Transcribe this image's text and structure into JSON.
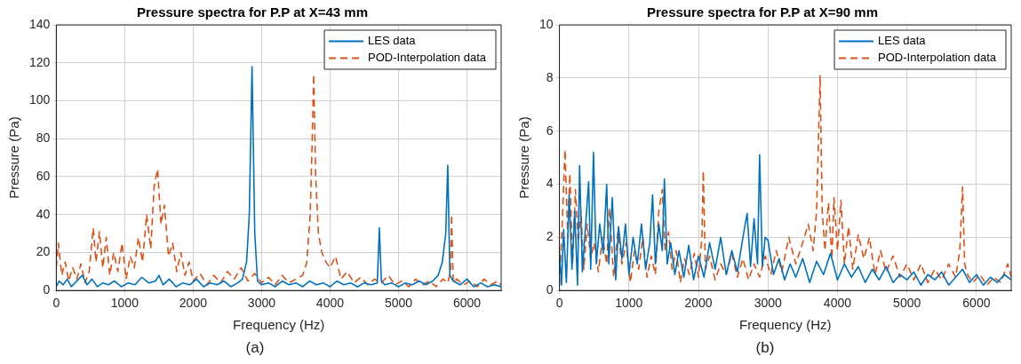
{
  "chart_data": [
    {
      "type": "line",
      "title": "Pressure spectra for P.P at X=43 mm",
      "xlabel": "Frequency (Hz)",
      "ylabel": "Pressure (Pa)",
      "annotations": [
        "(a)"
      ],
      "xlim": [
        0,
        6500
      ],
      "ylim": [
        0,
        140
      ],
      "xticks": [
        0,
        1000,
        2000,
        3000,
        4000,
        5000,
        6000
      ],
      "yticks": [
        0,
        20,
        40,
        60,
        80,
        100,
        120,
        140
      ],
      "grid": true,
      "legend": "top right",
      "series": [
        {
          "name": "LES data",
          "color": "#0072bd",
          "line_style": "solid",
          "x": [
            0,
            40,
            100,
            160,
            220,
            300,
            380,
            450,
            520,
            600,
            680,
            760,
            850,
            950,
            1050,
            1150,
            1250,
            1350,
            1450,
            1500,
            1560,
            1650,
            1750,
            1850,
            1950,
            2050,
            2150,
            2250,
            2350,
            2450,
            2550,
            2650,
            2720,
            2780,
            2820,
            2860,
            2900,
            2940,
            3000,
            3100,
            3200,
            3300,
            3400,
            3500,
            3600,
            3700,
            3800,
            3900,
            4000,
            4100,
            4200,
            4300,
            4400,
            4500,
            4600,
            4690,
            4720,
            4750,
            4800,
            4900,
            5000,
            5100,
            5200,
            5300,
            5400,
            5500,
            5580,
            5640,
            5690,
            5720,
            5750,
            5800,
            5900,
            6000,
            6100,
            6200,
            6300,
            6400,
            6500
          ],
          "values": [
            2,
            5,
            3,
            6,
            2,
            5,
            8,
            3,
            6,
            2,
            4,
            3,
            5,
            2,
            4,
            3,
            7,
            4,
            5,
            8,
            3,
            6,
            2,
            4,
            3,
            6,
            2,
            4,
            3,
            5,
            2,
            4,
            6,
            15,
            40,
            118,
            30,
            5,
            3,
            4,
            2,
            5,
            3,
            4,
            2,
            5,
            3,
            4,
            2,
            5,
            3,
            4,
            2,
            4,
            3,
            4,
            33,
            5,
            3,
            4,
            2,
            4,
            3,
            5,
            3,
            5,
            8,
            15,
            30,
            66,
            8,
            5,
            3,
            6,
            2,
            4,
            2,
            3,
            2
          ]
        },
        {
          "name": "POD-Interpolation data",
          "color": "#d95319",
          "line_style": "dashed",
          "x": [
            0,
            30,
            80,
            130,
            180,
            240,
            300,
            360,
            420,
            480,
            540,
            580,
            630,
            680,
            730,
            780,
            840,
            900,
            960,
            1020,
            1080,
            1140,
            1200,
            1260,
            1320,
            1380,
            1430,
            1480,
            1530,
            1580,
            1640,
            1700,
            1760,
            1820,
            1880,
            1940,
            2000,
            2100,
            2200,
            2300,
            2400,
            2500,
            2600,
            2700,
            2800,
            2900,
            3000,
            3100,
            3200,
            3300,
            3400,
            3500,
            3600,
            3660,
            3710,
            3740,
            3760,
            3790,
            3830,
            3880,
            3940,
            4000,
            4080,
            4160,
            4250,
            4350,
            4450,
            4550,
            4650,
            4750,
            4850,
            4950,
            5050,
            5150,
            5250,
            5350,
            5450,
            5550,
            5650,
            5720,
            5760,
            5775,
            5800,
            5850,
            5950,
            6050,
            6150,
            6250,
            6350,
            6450,
            6500
          ],
          "values": [
            12,
            25,
            8,
            15,
            5,
            12,
            6,
            14,
            4,
            10,
            33,
            15,
            31,
            12,
            28,
            8,
            20,
            10,
            25,
            6,
            18,
            12,
            28,
            15,
            40,
            22,
            55,
            64,
            35,
            45,
            18,
            25,
            10,
            20,
            8,
            15,
            5,
            9,
            3,
            8,
            4,
            10,
            6,
            12,
            5,
            9,
            4,
            7,
            3,
            8,
            4,
            6,
            8,
            15,
            40,
            80,
            114,
            60,
            30,
            20,
            15,
            12,
            18,
            6,
            10,
            4,
            7,
            3,
            6,
            4,
            8,
            3,
            5,
            2,
            6,
            3,
            5,
            2,
            6,
            4,
            10,
            40,
            4,
            6,
            3,
            5,
            2,
            6,
            3,
            5,
            3
          ]
        }
      ]
    },
    {
      "type": "line",
      "title": "Pressure spectra for P.P at X=90 mm",
      "xlabel": "Frequency (Hz)",
      "ylabel": "Pressure (Pa)",
      "annotations": [
        "(b)"
      ],
      "xlim": [
        0,
        6500
      ],
      "ylim": [
        0,
        10
      ],
      "xticks": [
        0,
        1000,
        2000,
        3000,
        4000,
        5000,
        6000
      ],
      "yticks": [
        0,
        2,
        4,
        6,
        8,
        10
      ],
      "grid": true,
      "legend": "top right",
      "series": [
        {
          "name": "LES data",
          "color": "#0072bd",
          "line_style": "solid",
          "x": [
            0,
            30,
            60,
            100,
            140,
            180,
            220,
            260,
            290,
            330,
            370,
            420,
            450,
            490,
            530,
            580,
            630,
            680,
            710,
            760,
            810,
            850,
            900,
            950,
            1000,
            1060,
            1120,
            1180,
            1240,
            1300,
            1340,
            1380,
            1430,
            1480,
            1510,
            1550,
            1600,
            1660,
            1720,
            1790,
            1860,
            1930,
            2000,
            2080,
            2160,
            2240,
            2320,
            2400,
            2480,
            2560,
            2640,
            2700,
            2750,
            2800,
            2850,
            2880,
            2920,
            2960,
            3000,
            3080,
            3160,
            3240,
            3320,
            3400,
            3500,
            3600,
            3700,
            3800,
            3900,
            4000,
            4100,
            4200,
            4300,
            4400,
            4500,
            4600,
            4700,
            4800,
            4900,
            5000,
            5100,
            5200,
            5300,
            5400,
            5500,
            5600,
            5700,
            5800,
            5900,
            6000,
            6100,
            6200,
            6300,
            6400,
            6500
          ],
          "values": [
            1.5,
            0.2,
            2.3,
            0.3,
            3.6,
            0.8,
            3.0,
            0.2,
            4.7,
            0.7,
            2.2,
            4.1,
            0.8,
            5.2,
            1.0,
            2.5,
            1.4,
            4.0,
            1.0,
            3.5,
            0.4,
            2.4,
            1.2,
            2.5,
            0.6,
            2.0,
            1.0,
            2.5,
            0.8,
            1.8,
            3.6,
            1.0,
            2.5,
            1.5,
            4.2,
            1.0,
            1.8,
            0.6,
            1.5,
            0.5,
            1.7,
            0.4,
            1.3,
            0.5,
            1.8,
            0.8,
            2.0,
            0.6,
            1.5,
            0.7,
            2.0,
            2.9,
            0.9,
            2.7,
            1.0,
            5.1,
            0.9,
            2.0,
            1.9,
            0.6,
            1.2,
            0.4,
            1.0,
            0.5,
            1.2,
            0.3,
            1.1,
            0.6,
            1.4,
            0.4,
            1.0,
            0.5,
            0.9,
            0.3,
            0.8,
            0.4,
            0.9,
            0.3,
            0.6,
            0.4,
            0.7,
            0.2,
            0.6,
            0.4,
            0.7,
            0.2,
            0.5,
            0.8,
            0.3,
            0.6,
            0.2,
            0.5,
            0.3,
            0.6,
            0.4
          ]
        },
        {
          "name": "POD-Interpolation data",
          "color": "#d95319",
          "line_style": "dashed",
          "x": [
            0,
            40,
            80,
            120,
            150,
            190,
            230,
            270,
            310,
            350,
            400,
            450,
            500,
            560,
            620,
            680,
            720,
            780,
            840,
            900,
            960,
            1020,
            1080,
            1140,
            1200,
            1260,
            1320,
            1380,
            1430,
            1480,
            1520,
            1570,
            1620,
            1680,
            1740,
            1800,
            1870,
            1940,
            2000,
            2050,
            2070,
            2100,
            2160,
            2240,
            2320,
            2400,
            2480,
            2560,
            2640,
            2720,
            2800,
            2880,
            2960,
            3040,
            3120,
            3200,
            3300,
            3400,
            3500,
            3580,
            3650,
            3700,
            3730,
            3750,
            3780,
            3820,
            3870,
            3920,
            3950,
            4000,
            4050,
            4100,
            4160,
            4220,
            4300,
            4380,
            4460,
            4540,
            4620,
            4700,
            4800,
            4900,
            5000,
            5100,
            5200,
            5300,
            5400,
            5500,
            5600,
            5700,
            5760,
            5800,
            5830,
            5870,
            5950,
            6050,
            6150,
            6250,
            6350,
            6450,
            6500
          ],
          "values": [
            0.2,
            2.5,
            5.3,
            2.0,
            4.4,
            1.0,
            3.8,
            1.8,
            3.0,
            0.8,
            2.5,
            1.2,
            1.8,
            0.7,
            2.0,
            1.0,
            3.1,
            0.5,
            2.2,
            1.0,
            1.8,
            0.3,
            1.5,
            0.8,
            2.0,
            0.5,
            1.3,
            0.6,
            3.0,
            3.8,
            1.5,
            2.2,
            0.8,
            1.5,
            0.3,
            1.2,
            0.6,
            1.4,
            0.5,
            2.0,
            4.5,
            0.8,
            1.3,
            0.4,
            1.0,
            0.6,
            1.4,
            0.5,
            1.2,
            0.4,
            1.0,
            0.5,
            1.3,
            0.6,
            1.5,
            0.7,
            2.0,
            1.0,
            1.8,
            2.5,
            1.5,
            3.0,
            6.0,
            8.1,
            3.0,
            1.5,
            3.3,
            1.2,
            3.5,
            1.5,
            3.4,
            1.0,
            2.4,
            0.8,
            2.1,
            1.2,
            2.0,
            0.6,
            1.5,
            0.7,
            1.3,
            0.5,
            1.0,
            0.4,
            1.0,
            0.3,
            0.8,
            0.4,
            1.0,
            0.5,
            1.5,
            3.9,
            1.0,
            0.6,
            0.3,
            0.6,
            0.2,
            0.5,
            0.3,
            1.0,
            0.5
          ]
        }
      ]
    }
  ]
}
